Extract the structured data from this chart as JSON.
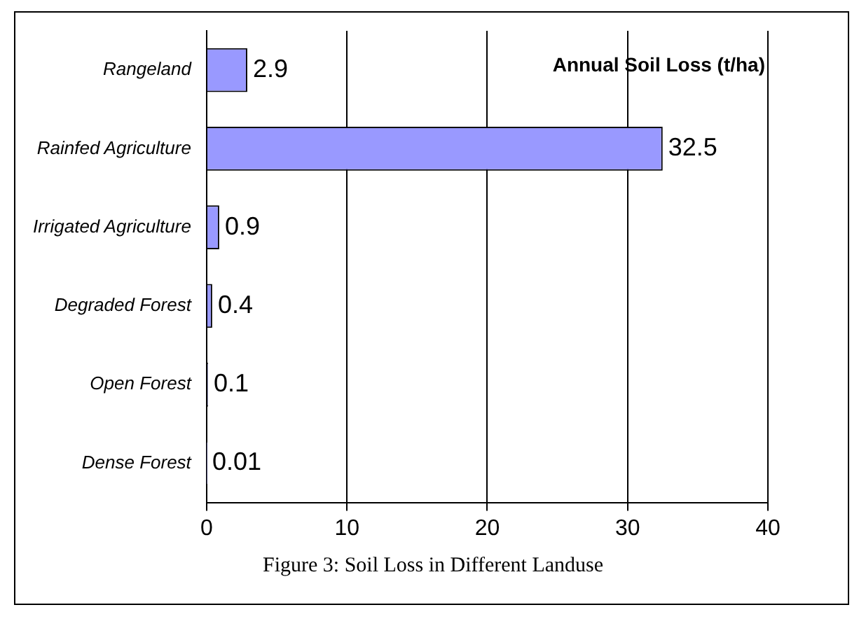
{
  "chart_data": {
    "type": "bar",
    "orientation": "horizontal",
    "title": "Annual Soil Loss (t/ha)",
    "categories": [
      "Rangeland",
      "Rainfed Agriculture",
      "Irrigated Agriculture",
      "Degraded Forest",
      "Open Forest",
      "Dense Forest"
    ],
    "values": [
      2.9,
      32.5,
      0.9,
      0.4,
      0.1,
      0.01
    ],
    "color": "#9999ff",
    "xlim": [
      0,
      40
    ],
    "xticks": [
      0,
      10,
      20,
      30,
      40
    ],
    "grid": "x",
    "legend": false,
    "data_labels": true,
    "annotations": [
      "Figure 3: Soil Loss in Different Landuse"
    ]
  }
}
